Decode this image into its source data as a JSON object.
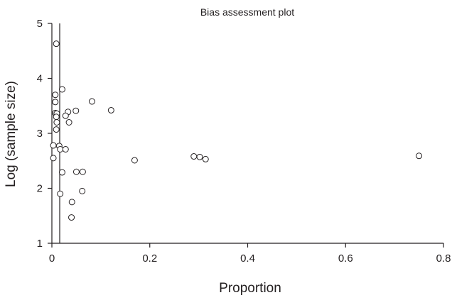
{
  "chart_data": {
    "type": "scatter",
    "title": "Bias assessment plot",
    "xlabel": "Proportion",
    "ylabel": "Log (sample size)",
    "xlim": [
      0,
      0.8
    ],
    "ylim": [
      1,
      5
    ],
    "x_ticks": [
      "0",
      "0.2",
      "0.4",
      "0.6",
      "0.8"
    ],
    "y_ticks": [
      "1",
      "2",
      "3",
      "4",
      "5"
    ],
    "reference_line_x": 0.016,
    "grid": false,
    "legend": "none",
    "marker": "open-circle",
    "series": [
      {
        "points": [
          {
            "x": 0.009,
            "y": 4.63
          },
          {
            "x": 0.021,
            "y": 3.8
          },
          {
            "x": 0.007,
            "y": 3.7
          },
          {
            "x": 0.007,
            "y": 3.57
          },
          {
            "x": 0.082,
            "y": 3.58
          },
          {
            "x": 0.121,
            "y": 3.42
          },
          {
            "x": 0.007,
            "y": 3.37
          },
          {
            "x": 0.01,
            "y": 3.36
          },
          {
            "x": 0.009,
            "y": 3.3
          },
          {
            "x": 0.033,
            "y": 3.39
          },
          {
            "x": 0.049,
            "y": 3.41
          },
          {
            "x": 0.028,
            "y": 3.32
          },
          {
            "x": 0.01,
            "y": 3.2
          },
          {
            "x": 0.035,
            "y": 3.2
          },
          {
            "x": 0.009,
            "y": 3.07
          },
          {
            "x": 0.003,
            "y": 2.78
          },
          {
            "x": 0.015,
            "y": 2.77
          },
          {
            "x": 0.017,
            "y": 2.71
          },
          {
            "x": 0.028,
            "y": 2.71
          },
          {
            "x": 0.003,
            "y": 2.55
          },
          {
            "x": 0.169,
            "y": 2.51
          },
          {
            "x": 0.29,
            "y": 2.58
          },
          {
            "x": 0.302,
            "y": 2.57
          },
          {
            "x": 0.314,
            "y": 2.53
          },
          {
            "x": 0.75,
            "y": 2.59
          },
          {
            "x": 0.021,
            "y": 2.29
          },
          {
            "x": 0.05,
            "y": 2.3
          },
          {
            "x": 0.063,
            "y": 2.3
          },
          {
            "x": 0.017,
            "y": 1.9
          },
          {
            "x": 0.062,
            "y": 1.95
          },
          {
            "x": 0.041,
            "y": 1.75
          },
          {
            "x": 0.04,
            "y": 1.47
          }
        ]
      }
    ]
  }
}
